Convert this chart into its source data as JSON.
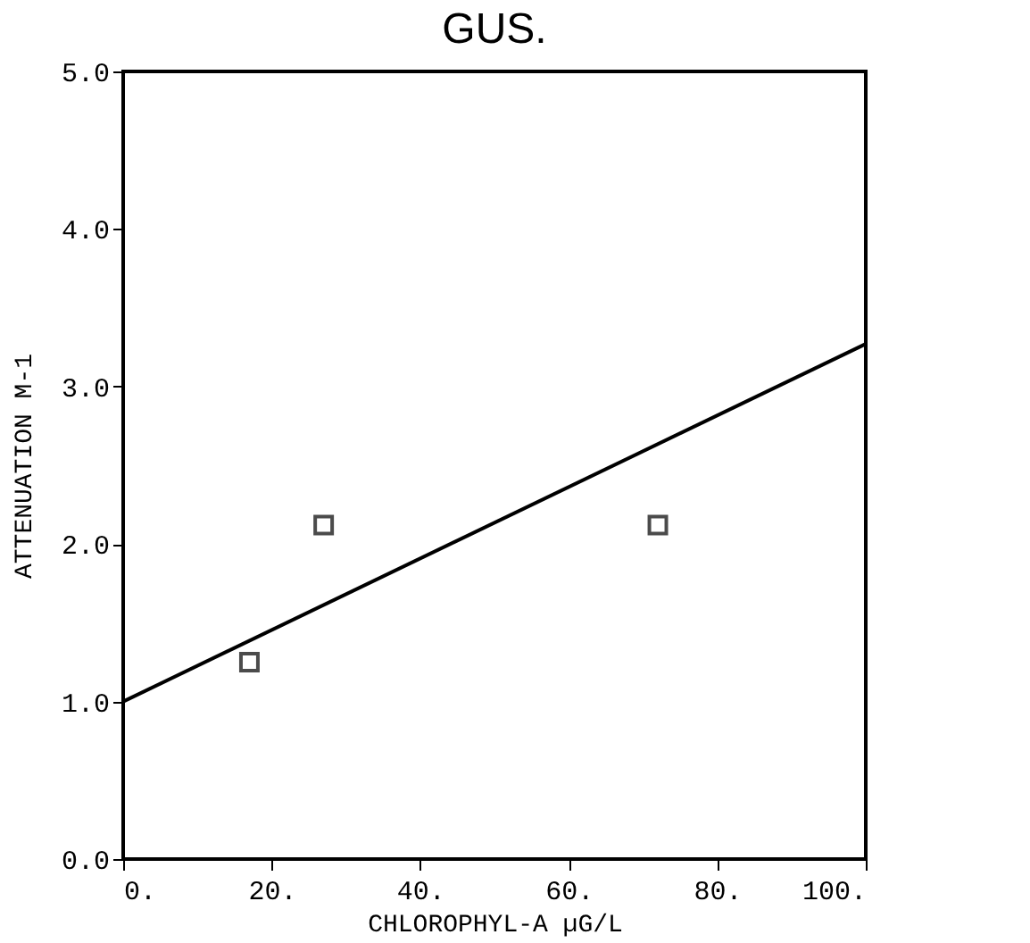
{
  "chart_data": {
    "type": "scatter",
    "title": "GUS.",
    "xlabel": "CHLOROPHYL-A  µG/L",
    "ylabel": "ATTENUATION M-1",
    "xlim": [
      0,
      100
    ],
    "ylim": [
      0,
      5
    ],
    "xticks": [
      {
        "value": 0,
        "label": "0."
      },
      {
        "value": 20,
        "label": "20."
      },
      {
        "value": 40,
        "label": "40."
      },
      {
        "value": 60,
        "label": "60."
      },
      {
        "value": 80,
        "label": "80."
      },
      {
        "value": 100,
        "label": "100."
      }
    ],
    "yticks": [
      {
        "value": 0,
        "label": "0.0"
      },
      {
        "value": 1,
        "label": "1.0"
      },
      {
        "value": 2,
        "label": "2.0"
      },
      {
        "value": 3,
        "label": "3.0"
      },
      {
        "value": 4,
        "label": "4.0"
      },
      {
        "value": 5,
        "label": "5.0"
      }
    ],
    "grid": false,
    "series": [
      {
        "marker": "square",
        "color": "#000000",
        "x": [
          17,
          27,
          72
        ],
        "values": [
          1.25,
          2.12,
          2.12
        ]
      },
      {
        "type": "line",
        "line_style": "solid",
        "marker": "none",
        "color": "#000000",
        "x": [
          0,
          100
        ],
        "values": [
          1.0,
          3.27
        ]
      }
    ]
  }
}
